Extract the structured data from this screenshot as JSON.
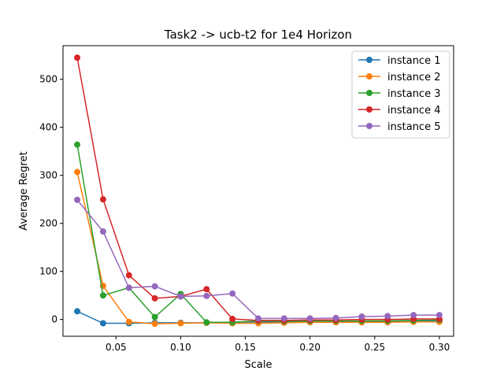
{
  "chart_data": {
    "type": "line",
    "title": "Task2 -> ucb-t2 for 1e4 Horizon",
    "xlabel": "Scale",
    "ylabel": "Average Regret",
    "xlim": [
      0.009,
      0.311
    ],
    "ylim": [
      -35,
      570
    ],
    "xticks": [
      "0.05",
      "0.10",
      "0.15",
      "0.20",
      "0.25",
      "0.30"
    ],
    "yticks": [
      "0",
      "100",
      "200",
      "300",
      "400",
      "500"
    ],
    "grid": false,
    "legend_position": "top-right",
    "x": [
      0.02,
      0.04,
      0.06,
      0.08,
      0.1,
      0.12,
      0.14,
      0.16,
      0.18,
      0.2,
      0.22,
      0.24,
      0.26,
      0.28,
      0.3
    ],
    "series": [
      {
        "name": "instance 1",
        "color": "#1f77b4",
        "values": [
          17,
          -8,
          -8,
          -7,
          -7,
          -7,
          -6,
          -5,
          -5,
          -5,
          -4,
          -4,
          -4,
          -3,
          -3
        ]
      },
      {
        "name": "instance 2",
        "color": "#ff7f0e",
        "values": [
          307,
          70,
          -5,
          -9,
          -8,
          -7,
          -8,
          -8,
          -7,
          -6,
          -6,
          -6,
          -6,
          -5,
          -5
        ]
      },
      {
        "name": "instance 3",
        "color": "#2ca02c",
        "values": [
          364,
          50,
          66,
          5,
          53,
          -6,
          -6,
          -3,
          -4,
          -3,
          -3,
          -3,
          -3,
          -2,
          -1
        ]
      },
      {
        "name": "instance 4",
        "color": "#d62728",
        "values": [
          545,
          250,
          92,
          44,
          48,
          63,
          1,
          -2,
          -2,
          -1,
          -1,
          0,
          0,
          1,
          1
        ]
      },
      {
        "name": "instance 5",
        "color": "#9467bd",
        "values": [
          249,
          183,
          66,
          69,
          48,
          49,
          54,
          2,
          2,
          2,
          3,
          6,
          7,
          9,
          9
        ]
      }
    ]
  }
}
